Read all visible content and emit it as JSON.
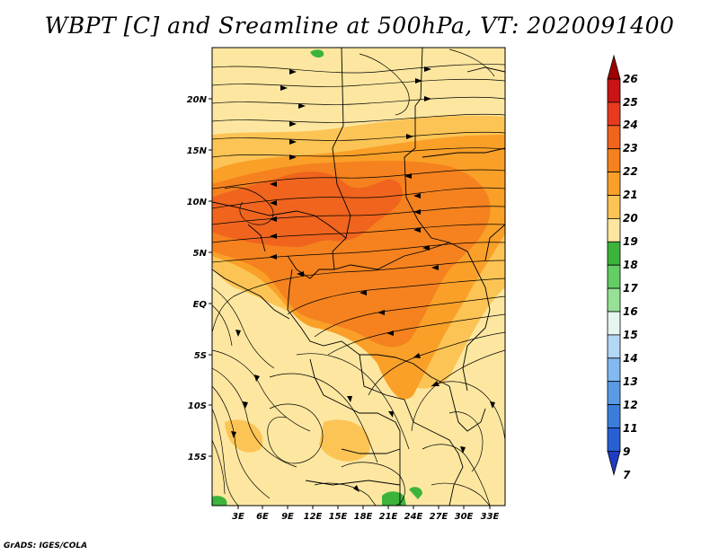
{
  "title": "WBPT [C] and Sreamline at 500hPa, VT: 2020091400",
  "credit": "GrADS: IGES/COLA",
  "lat_labels": [
    "20N",
    "15N",
    "10N",
    "5N",
    "EQ",
    "5S",
    "10S",
    "15S"
  ],
  "lon_labels": [
    "3E",
    "6E",
    "9E",
    "12E",
    "15E",
    "18E",
    "21E",
    "24E",
    "27E",
    "30E",
    "33E"
  ],
  "colorbar": {
    "levels": [
      "26",
      "25",
      "24",
      "23",
      "22",
      "21",
      "20",
      "19",
      "18",
      "17",
      "16",
      "15",
      "14",
      "13",
      "12",
      "11",
      "9",
      "7"
    ],
    "colors": [
      "#a00000",
      "#c81414",
      "#e63b1e",
      "#f0641e",
      "#f5821e",
      "#faa028",
      "#fcc455",
      "#fde7a0",
      "#3cb43c",
      "#64cd64",
      "#96e196",
      "#e6f5f0",
      "#b4d7f5",
      "#82b9f0",
      "#5a9be6",
      "#3c7ddc",
      "#285fd2",
      "#1e3cc3"
    ]
  },
  "map": {
    "colors": {
      "base": "#fde7a0",
      "c20": "#fcc455",
      "c21": "#faa028",
      "c22": "#f5821e",
      "c23": "#f0641e",
      "green": "#3cb43c"
    }
  }
}
